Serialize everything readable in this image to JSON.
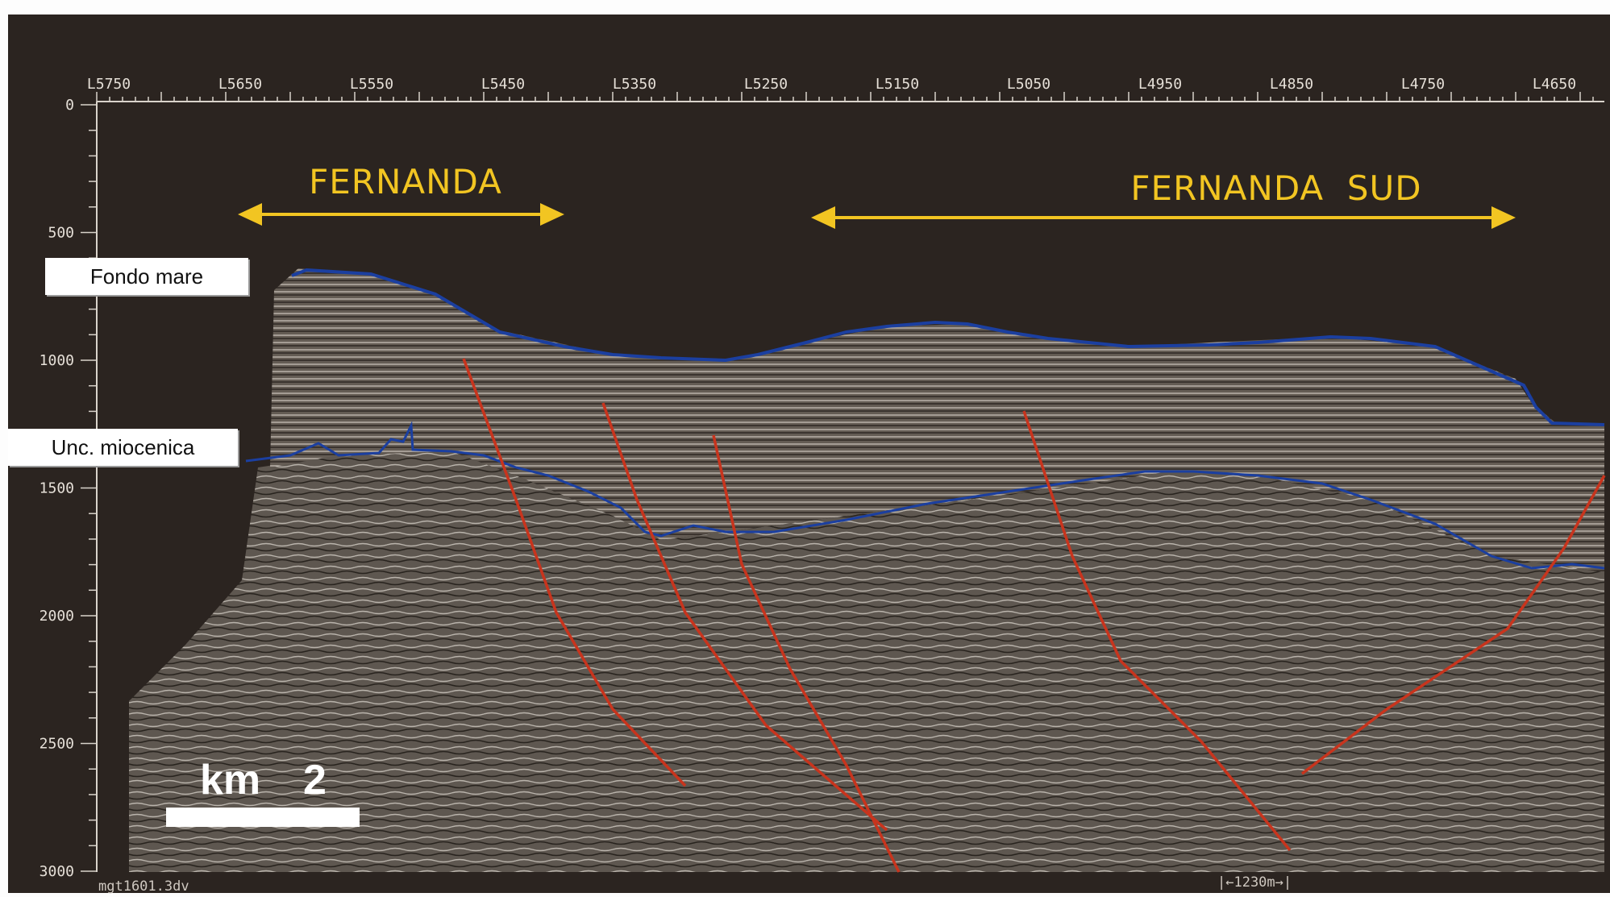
{
  "inline_labels": [
    "L5750",
    "L5650",
    "L5550",
    "L5450",
    "L5350",
    "L5250",
    "L5150",
    "L5050",
    "L4950",
    "L4850",
    "L4750",
    "L4650"
  ],
  "depth_labels": [
    "0",
    "500",
    "1000",
    "1500",
    "2000",
    "2500",
    "3000"
  ],
  "fields": [
    {
      "name": "FERNANDA"
    },
    {
      "name": "FERNANDA  SUD"
    }
  ],
  "horizons": {
    "seafloor_label": "Fondo mare",
    "unconformity_label": "Unc. miocenica"
  },
  "scale_bar": {
    "unit": "km",
    "value": "2"
  },
  "footer": {
    "file_name": "mgt1601.3dv",
    "distance": "|←1230m→|"
  },
  "colors": {
    "background": "#2b2420",
    "seismic": "#6a625a",
    "horizon": "#1b3fa0",
    "fault": "#c8341d",
    "field_label": "#f2c522"
  }
}
